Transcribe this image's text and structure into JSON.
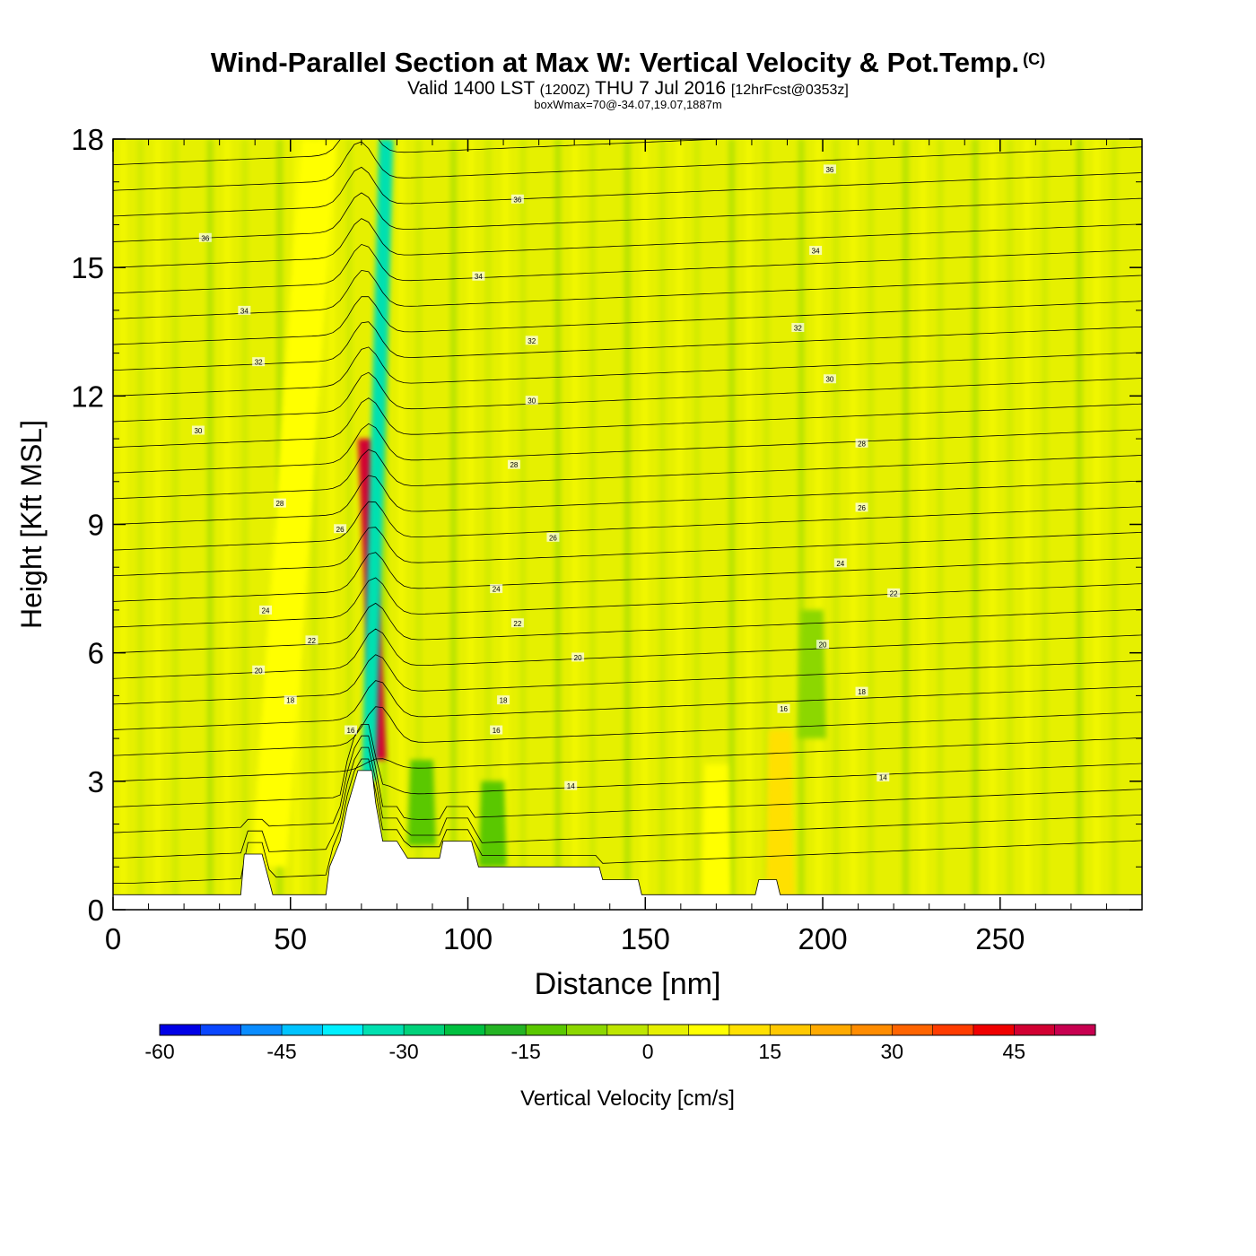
{
  "title": {
    "main": "Wind-Parallel Section at Max W: Vertical Velocity & Pot.Temp.",
    "copyright": "(C)",
    "valid": "Valid 1400 LST",
    "zulu": "(1200Z)",
    "date": "THU 7 Jul 2016",
    "forecast": "[12hrFcst@0353z]",
    "box_info": "boxWmax=70@-34.07,19.07,1887m"
  },
  "chart_data": {
    "type": "heatmap",
    "xlabel": "Distance [nm]",
    "ylabel": "Height [Kft MSL]",
    "xlim": [
      0,
      290
    ],
    "ylim": [
      0,
      18
    ],
    "x_ticks": [
      "0",
      "50",
      "100",
      "150",
      "200",
      "250"
    ],
    "x_tick_values": [
      0,
      50,
      100,
      150,
      200,
      250
    ],
    "y_ticks": [
      "0",
      "3",
      "6",
      "9",
      "12",
      "15",
      "18"
    ],
    "y_tick_values": [
      0,
      3,
      6,
      9,
      12,
      15,
      18
    ],
    "field": "Vertical Velocity",
    "contour_field": "Potential Temperature",
    "colorbar": {
      "label": "Vertical Velocity [cm/s]",
      "min": -60,
      "max": 55,
      "step": 5,
      "tick_labels": [
        "-60",
        "-45",
        "-30",
        "-15",
        "0",
        "15",
        "30",
        "45"
      ],
      "tick_values": [
        -60,
        -45,
        -30,
        -15,
        0,
        15,
        30,
        45
      ],
      "colors": [
        "#0000e6",
        "#0a46ff",
        "#0a8cff",
        "#00c3ff",
        "#00f0ff",
        "#00e0b0",
        "#00d27a",
        "#00c040",
        "#24b424",
        "#5ac800",
        "#8cd700",
        "#bee600",
        "#e6f000",
        "#ffff00",
        "#ffe000",
        "#ffc800",
        "#ffaa00",
        "#ff8c00",
        "#ff6400",
        "#ff3c00",
        "#f00000",
        "#d20032",
        "#c80050"
      ]
    },
    "background_value": 2,
    "features": [
      {
        "name": "main-updraft-core",
        "x_bottom": 75,
        "x_top": 71,
        "y_range": [
          3.5,
          11
        ],
        "value": 45
      },
      {
        "name": "main-downdraft-core",
        "x_bottom": 72,
        "x_top": 77,
        "y_range": [
          3,
          18
        ],
        "value": -35
      },
      {
        "name": "updraft-band-west",
        "x_bottom": 44,
        "x_top": 58,
        "y_range": [
          1,
          18
        ],
        "value": 8
      },
      {
        "name": "updraft-near-190",
        "x": 188,
        "y_range": [
          0.3,
          4.2
        ],
        "value": 12
      },
      {
        "name": "updraft-near-170",
        "x": 170,
        "y_range": [
          0.3,
          3.4
        ],
        "value": 9
      },
      {
        "name": "downdraft-near-87",
        "x": 87,
        "y_range": [
          1.5,
          3.5
        ],
        "value": -14
      },
      {
        "name": "downdraft-near-105",
        "x": 107,
        "y_range": [
          1,
          3
        ],
        "value": -12
      },
      {
        "name": "downdraft-near-195",
        "x": 197,
        "y_range": [
          4,
          7
        ],
        "value": -7
      }
    ],
    "terrain_kft": [
      [
        0,
        0.35
      ],
      [
        36,
        0.35
      ],
      [
        37,
        1.3
      ],
      [
        42,
        1.3
      ],
      [
        45,
        0.35
      ],
      [
        60,
        0.35
      ],
      [
        61,
        1.0
      ],
      [
        64,
        1.6
      ],
      [
        66,
        2.4
      ],
      [
        69,
        3.25
      ],
      [
        73,
        3.25
      ],
      [
        74,
        2.5
      ],
      [
        76,
        1.6
      ],
      [
        80,
        1.6
      ],
      [
        83,
        1.2
      ],
      [
        92,
        1.2
      ],
      [
        93,
        1.6
      ],
      [
        101,
        1.6
      ],
      [
        103,
        1.0
      ],
      [
        137,
        1.0
      ],
      [
        138,
        0.7
      ],
      [
        148,
        0.7
      ],
      [
        149,
        0.35
      ],
      [
        181,
        0.35
      ],
      [
        182,
        0.7
      ],
      [
        187,
        0.7
      ],
      [
        188,
        0.35
      ],
      [
        290,
        0.35
      ]
    ],
    "theta_contour_labels": [
      {
        "label": "36",
        "x": 26,
        "y": 15.7
      },
      {
        "label": "34",
        "x": 37,
        "y": 14.0
      },
      {
        "label": "32",
        "x": 41,
        "y": 12.8
      },
      {
        "label": "30",
        "x": 24,
        "y": 11.2
      },
      {
        "label": "28",
        "x": 47,
        "y": 9.5
      },
      {
        "label": "26",
        "x": 64,
        "y": 8.9
      },
      {
        "label": "24",
        "x": 43,
        "y": 7.0
      },
      {
        "label": "22",
        "x": 56,
        "y": 6.3
      },
      {
        "label": "20",
        "x": 41,
        "y": 5.6
      },
      {
        "label": "18",
        "x": 50,
        "y": 4.9
      },
      {
        "label": "16",
        "x": 67,
        "y": 4.2
      },
      {
        "label": "36",
        "x": 114,
        "y": 16.6
      },
      {
        "label": "34",
        "x": 103,
        "y": 14.8
      },
      {
        "label": "32",
        "x": 118,
        "y": 13.3
      },
      {
        "label": "30",
        "x": 118,
        "y": 11.9
      },
      {
        "label": "28",
        "x": 113,
        "y": 10.4
      },
      {
        "label": "26",
        "x": 124,
        "y": 8.7
      },
      {
        "label": "24",
        "x": 108,
        "y": 7.5
      },
      {
        "label": "22",
        "x": 114,
        "y": 6.7
      },
      {
        "label": "20",
        "x": 131,
        "y": 5.9
      },
      {
        "label": "18",
        "x": 110,
        "y": 4.9
      },
      {
        "label": "16",
        "x": 108,
        "y": 4.2
      },
      {
        "label": "14",
        "x": 129,
        "y": 2.9
      },
      {
        "label": "36",
        "x": 202,
        "y": 17.3
      },
      {
        "label": "34",
        "x": 198,
        "y": 15.4
      },
      {
        "label": "32",
        "x": 193,
        "y": 13.6
      },
      {
        "label": "30",
        "x": 202,
        "y": 12.4
      },
      {
        "label": "28",
        "x": 211,
        "y": 10.9
      },
      {
        "label": "26",
        "x": 211,
        "y": 9.4
      },
      {
        "label": "24",
        "x": 205,
        "y": 8.1
      },
      {
        "label": "22",
        "x": 220,
        "y": 7.4
      },
      {
        "label": "20",
        "x": 200,
        "y": 6.2
      },
      {
        "label": "18",
        "x": 211,
        "y": 5.1
      },
      {
        "label": "16",
        "x": 189,
        "y": 4.7
      },
      {
        "label": "14",
        "x": 217,
        "y": 3.1
      }
    ]
  }
}
